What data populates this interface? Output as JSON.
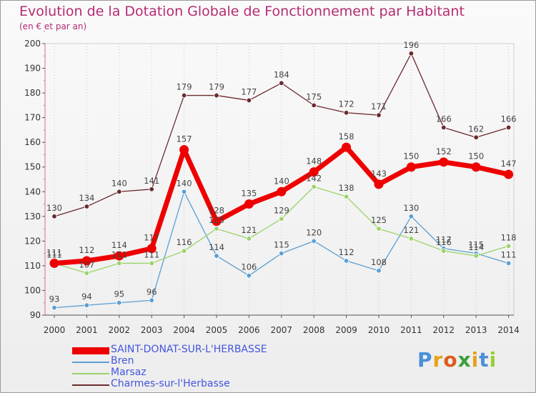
{
  "chart_data": {
    "type": "line",
    "title": "Evolution de la Dotation Globale de Fonctionnement par Habitant",
    "subtitle": "(en € et par an)",
    "categories": [
      "2000",
      "2001",
      "2002",
      "2003",
      "2004",
      "2005",
      "2006",
      "2007",
      "2008",
      "2009",
      "2010",
      "2011",
      "2012",
      "2013",
      "2014"
    ],
    "y_ticks": [
      90,
      100,
      110,
      120,
      130,
      140,
      150,
      160,
      170,
      180,
      190,
      200
    ],
    "ylim": [
      90,
      200
    ],
    "series": [
      {
        "name": "Charmes-sur-l'Herbasse",
        "color": "#6b2a2e",
        "values": [
          130,
          134,
          140,
          141,
          179,
          179,
          177,
          184,
          175,
          172,
          171,
          196,
          166,
          162,
          166
        ]
      },
      {
        "name": "Bren",
        "color": "#5a9fd4",
        "values": [
          93,
          94,
          95,
          96,
          140,
          114,
          106,
          115,
          120,
          112,
          108,
          130,
          117,
          115,
          111
        ]
      },
      {
        "name": "Marsaz",
        "color": "#9ad36a",
        "values": [
          111,
          107,
          111,
          111,
          116,
          125,
          121,
          129,
          142,
          138,
          125,
          121,
          116,
          114,
          118
        ]
      },
      {
        "name": "SAINT-DONAT-SUR-L'HERBASSE",
        "color": "#ee0000",
        "values": [
          111,
          112,
          114,
          117,
          157,
          128,
          135,
          140,
          148,
          158,
          143,
          150,
          152,
          150,
          147
        ]
      }
    ],
    "legend": [
      "SAINT-DONAT-SUR-L'HERBASSE",
      "Bren",
      "Marsaz",
      "Charmes-sur-l'Herbasse"
    ]
  },
  "logo": {
    "text": "Proxiti",
    "letters": [
      "P",
      "r",
      "o",
      "x",
      "i",
      "t",
      "i"
    ],
    "colors": [
      "#4a90d9",
      "#e8a21a",
      "#e05a1f",
      "#3aa03a",
      "#e8a21a",
      "#4a90d9",
      "#9acd32"
    ]
  }
}
